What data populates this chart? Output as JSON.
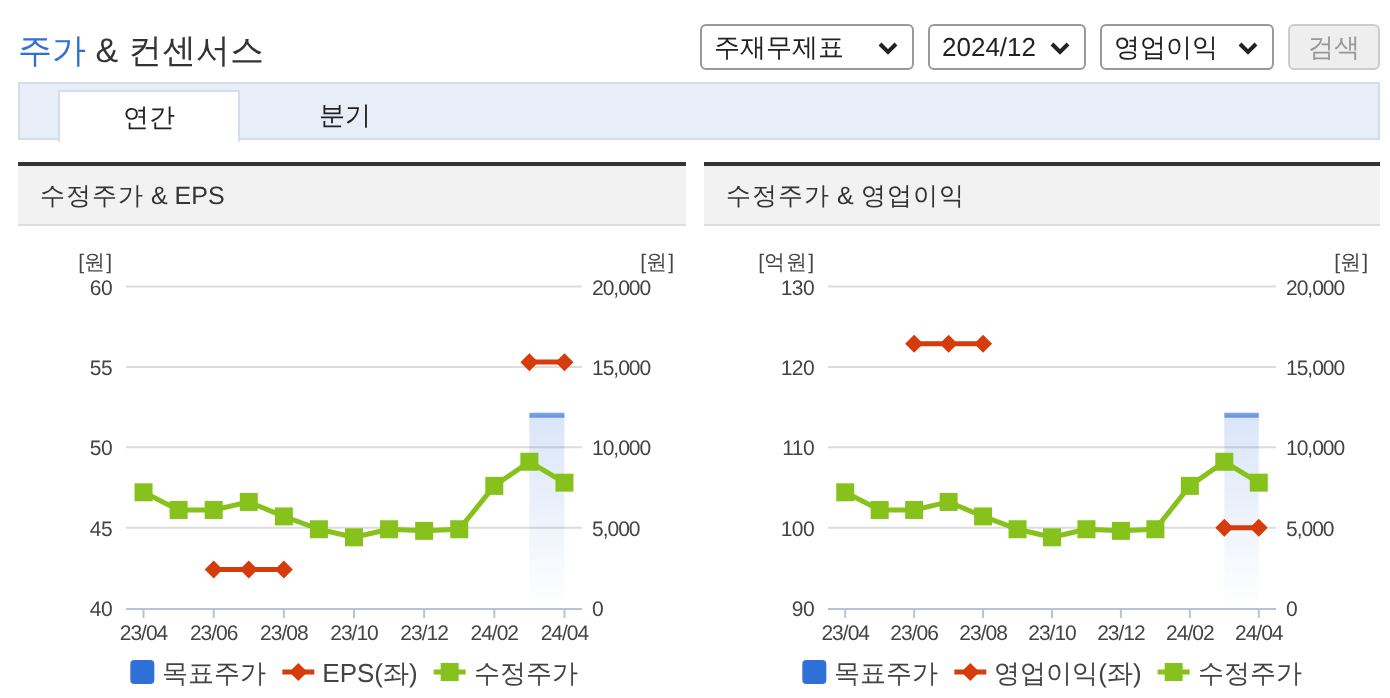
{
  "chart_data": [
    {
      "type": "other",
      "title": "주가 & 컨센서스",
      "annotations": [
        "주재무제표",
        "2024/12",
        "영업이익",
        "검색",
        "연간",
        "분기"
      ]
    },
    {
      "type": "line",
      "title": "수정주가 & EPS",
      "ylabel": "[원]",
      "y2label": "[원]",
      "categories": [
        "23/04",
        null,
        "23/06",
        null,
        "23/08",
        null,
        "23/10",
        null,
        "23/12",
        null,
        "24/02",
        null,
        "24/04"
      ],
      "ylim": [
        40,
        60
      ],
      "yticks": [
        40,
        45,
        50,
        55,
        60
      ],
      "y2lim": [
        0,
        20000
      ],
      "y2ticks": [
        0,
        {
          "value": 5000,
          "label": "5,000"
        },
        {
          "value": 10000,
          "label": "10,000"
        },
        {
          "value": 15000,
          "label": "15,000"
        },
        {
          "value": 20000,
          "label": "20,000"
        }
      ],
      "grid": "y",
      "legend": "bottom",
      "series": [
        {
          "name": "목표주가",
          "type": "area",
          "axis": "y2",
          "color": "#2f6fd8",
          "values": [
            null,
            null,
            null,
            null,
            null,
            null,
            null,
            null,
            null,
            null,
            null,
            12000,
            12000
          ]
        },
        {
          "name": "EPS(좌)",
          "type": "line",
          "marker": "diamond",
          "color": "#d63b0b",
          "values": [
            null,
            null,
            42.4,
            42.4,
            42.4,
            null,
            null,
            null,
            null,
            null,
            null,
            55.3,
            55.3
          ]
        },
        {
          "name": "수정주가",
          "type": "line",
          "marker": "square",
          "axis": "y2",
          "color": "#86c21b",
          "values": [
            7200,
            6100,
            6100,
            6600,
            5700,
            4900,
            4400,
            4900,
            4800,
            4900,
            7600,
            9100,
            7800
          ]
        }
      ]
    },
    {
      "type": "line",
      "title": "수정주가 & 영업이익",
      "ylabel": "[억원]",
      "y2label": "[원]",
      "categories": [
        "23/04",
        null,
        "23/06",
        null,
        "23/08",
        null,
        "23/10",
        null,
        "23/12",
        null,
        "24/02",
        null,
        "24/04"
      ],
      "ylim": [
        90,
        130
      ],
      "yticks": [
        90,
        100,
        110,
        120,
        130
      ],
      "y2lim": [
        0,
        20000
      ],
      "y2ticks": [
        0,
        {
          "value": 5000,
          "label": "5,000"
        },
        {
          "value": 10000,
          "label": "10,000"
        },
        {
          "value": 15000,
          "label": "15,000"
        },
        {
          "value": 20000,
          "label": "20,000"
        }
      ],
      "grid": "y",
      "legend": "bottom",
      "series": [
        {
          "name": "목표주가",
          "type": "area",
          "axis": "y2",
          "color": "#2f6fd8",
          "values": [
            null,
            null,
            null,
            null,
            null,
            null,
            null,
            null,
            null,
            null,
            null,
            12000,
            12000
          ]
        },
        {
          "name": "영업이익(좌)",
          "type": "line",
          "marker": "diamond",
          "color": "#d63b0b",
          "values": [
            null,
            null,
            122.9,
            122.9,
            122.9,
            null,
            null,
            null,
            null,
            null,
            null,
            100,
            100
          ]
        },
        {
          "name": "수정주가",
          "type": "line",
          "marker": "square",
          "axis": "y2",
          "color": "#86c21b",
          "values": [
            7200,
            6100,
            6100,
            6600,
            5700,
            4900,
            4400,
            4900,
            4800,
            4900,
            7600,
            9100,
            7800
          ]
        }
      ]
    }
  ]
}
